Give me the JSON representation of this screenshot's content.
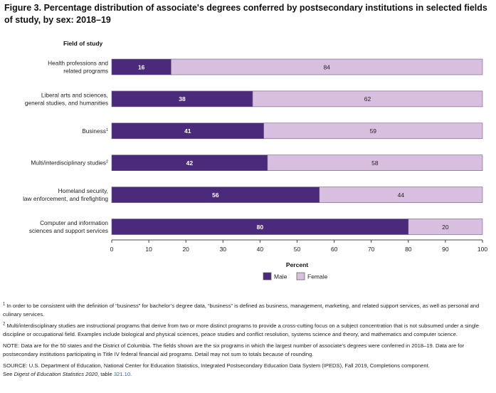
{
  "figure": {
    "title": "Figure 3. Percentage distribution of associate's degrees conferred by postsecondary institutions in selected fields of study, by sex: 2018–19"
  },
  "chart_data": {
    "type": "bar",
    "orientation": "horizontal",
    "stacked": true,
    "category_axis_title": "Field of study",
    "categories": [
      [
        "Health professions and",
        "related programs"
      ],
      [
        "Liberal arts and sciences,",
        "general studies, and humanities"
      ],
      [
        "Business"
      ],
      [
        "Multi/interdisciplinary studies"
      ],
      [
        "Homeland security,",
        "law enforcement, and firefighting"
      ],
      [
        "Computer and information",
        "sciences and support services"
      ]
    ],
    "category_superscripts": [
      "",
      "",
      "1",
      "2",
      "",
      ""
    ],
    "series": [
      {
        "name": "Male",
        "color": "#4b2a7b",
        "label_color": "#ffffff",
        "values": [
          16,
          38,
          41,
          42,
          56,
          80
        ]
      },
      {
        "name": "Female",
        "color": "#d9bfdf",
        "label_color": "#222222",
        "values": [
          84,
          62,
          59,
          58,
          44,
          20
        ]
      }
    ],
    "xlabel": "Percent",
    "xlim": [
      0,
      100
    ],
    "xticks": [
      0,
      10,
      20,
      30,
      40,
      50,
      60,
      70,
      80,
      90,
      100
    ],
    "grid": false,
    "legend_position": "bottom-center"
  },
  "footnotes": {
    "note1_mark": "1",
    "note1": "In order to be consistent with the definition of “business” for bachelor’s degree data, “business” is defined as business, management, marketing, and related support services, as well as personal and culinary services.",
    "note2_mark": "2",
    "note2": "Multi/interdisciplinary studies are instructional programs that derive from two or more distinct programs to provide a cross-cutting focus on a subject concentration that is not subsumed under a single discipline or occupational field. Examples include biological and physical sciences, peace studies and conflict resolution, systems science and theory, and mathematics and computer science.",
    "note_label": "NOTE:",
    "note": "Data are for the 50 states and the District of Columbia. The fields shown are the six programs in which the largest number of associate’s degrees were conferred in 2018–19. Data are for postsecondary institutions participating in Title IV federal financial aid programs. Detail may not sum to totals because of rounding.",
    "source_label": "SOURCE:",
    "source": "U.S. Department of Education, National Center for Education Statistics, Integrated Postsecondary Education Data System (IPEDS), Fall 2019, Completions component.",
    "see": "See",
    "digest": "Digest of Education Statistics 2020",
    "table_text": ", table",
    "table_link": "321.10",
    "period": "."
  }
}
